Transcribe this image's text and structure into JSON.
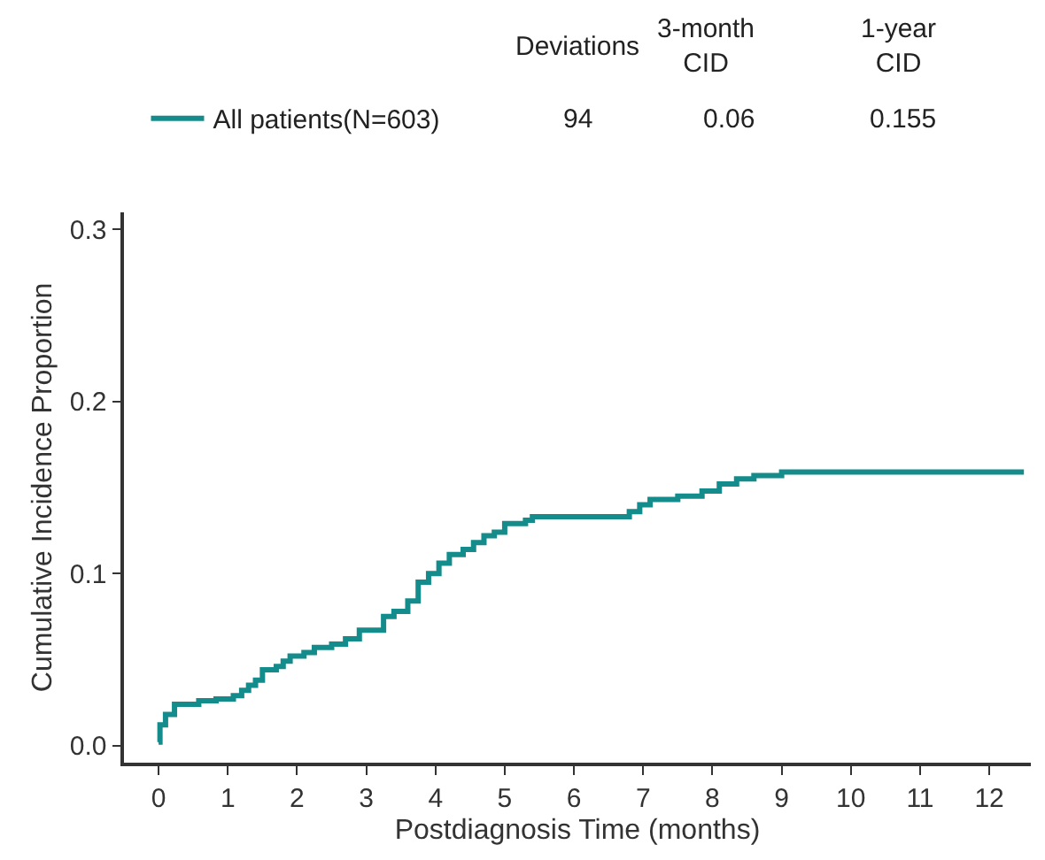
{
  "chart_data": {
    "type": "step",
    "xlabel": "Postdiagnosis Time (months)",
    "ylabel": "Cumulative Incidence Proportion",
    "x": [
      0,
      0.02,
      0.1,
      0.23,
      0.58,
      0.83,
      1.08,
      1.2,
      1.3,
      1.4,
      1.5,
      1.7,
      1.8,
      1.9,
      2.1,
      2.25,
      2.5,
      2.7,
      2.9,
      3.25,
      3.4,
      3.6,
      3.75,
      3.9,
      4.05,
      4.2,
      4.4,
      4.55,
      4.7,
      4.85,
      5.0,
      5.3,
      5.4,
      6.8,
      6.95,
      7.1,
      7.5,
      7.85,
      8.1,
      8.35,
      8.6,
      9.0,
      12.5
    ],
    "series": [
      {
        "name": "All patients(N=603)",
        "color": "#148c8c",
        "values": [
          0.002,
          0.012,
          0.018,
          0.024,
          0.026,
          0.027,
          0.029,
          0.032,
          0.035,
          0.038,
          0.044,
          0.046,
          0.049,
          0.052,
          0.054,
          0.057,
          0.059,
          0.062,
          0.067,
          0.075,
          0.078,
          0.084,
          0.095,
          0.1,
          0.106,
          0.111,
          0.114,
          0.118,
          0.122,
          0.124,
          0.129,
          0.131,
          0.133,
          0.136,
          0.14,
          0.143,
          0.145,
          0.148,
          0.152,
          0.155,
          0.157,
          0.159,
          0.159
        ]
      }
    ],
    "xlim": [
      -0.5,
      12.6
    ],
    "xticks": [
      0,
      1,
      2,
      3,
      4,
      5,
      6,
      7,
      8,
      9,
      10,
      11,
      12
    ],
    "ylim": [
      -0.01,
      0.31
    ],
    "yticks": [
      {
        "value": 0,
        "label": "0.0"
      },
      0.1,
      0.2,
      0.3
    ],
    "annotations": [
      "Deviations",
      "3-month\nCID",
      "1-year\nCID",
      "94",
      "0.06",
      "0.155"
    ],
    "legend": "top left",
    "marker": "none",
    "line_style": "solid"
  }
}
